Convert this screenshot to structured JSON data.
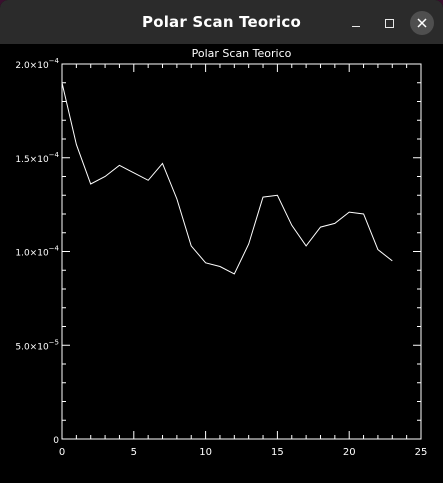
{
  "window": {
    "title": "Polar Scan Teorico"
  },
  "chart_data": {
    "type": "line",
    "title": "Polar Scan Teorico",
    "xlabel": "",
    "ylabel": "",
    "xlim": [
      0,
      25
    ],
    "ylim": [
      0,
      0.0002
    ],
    "xticks": [
      0,
      5,
      10,
      15,
      20,
      25
    ],
    "xtick_labels": [
      "0",
      "5",
      "10",
      "15",
      "20",
      "25"
    ],
    "yticks": [
      0,
      5e-05,
      0.0001,
      0.00015,
      0.0002
    ],
    "ytick_labels": [
      {
        "mantissa": "0",
        "exponent": ""
      },
      {
        "mantissa": "5.0×10",
        "exponent": "−5"
      },
      {
        "mantissa": "1.0×10",
        "exponent": "−4"
      },
      {
        "mantissa": "1.5×10",
        "exponent": "−4"
      },
      {
        "mantissa": "2.0×10",
        "exponent": "−4"
      }
    ],
    "grid": false,
    "series": [
      {
        "x": [
          0,
          1,
          2,
          3,
          4,
          5,
          6,
          7,
          8,
          9,
          10,
          11,
          12,
          13,
          14,
          15,
          16,
          17,
          18,
          19,
          20,
          21,
          22,
          23
        ],
        "values": [
          0.00019,
          0.000157,
          0.000136,
          0.00014,
          0.000146,
          0.000142,
          0.000138,
          0.000147,
          0.000128,
          0.000103,
          9.4e-05,
          9.2e-05,
          8.8e-05,
          0.000104,
          0.000129,
          0.00013,
          0.000114,
          0.000103,
          0.000113,
          0.000115,
          0.000121,
          0.00012,
          0.000101,
          9.5e-05
        ]
      }
    ],
    "colors": {
      "background": "#000000",
      "foreground": "#ffffff"
    }
  }
}
